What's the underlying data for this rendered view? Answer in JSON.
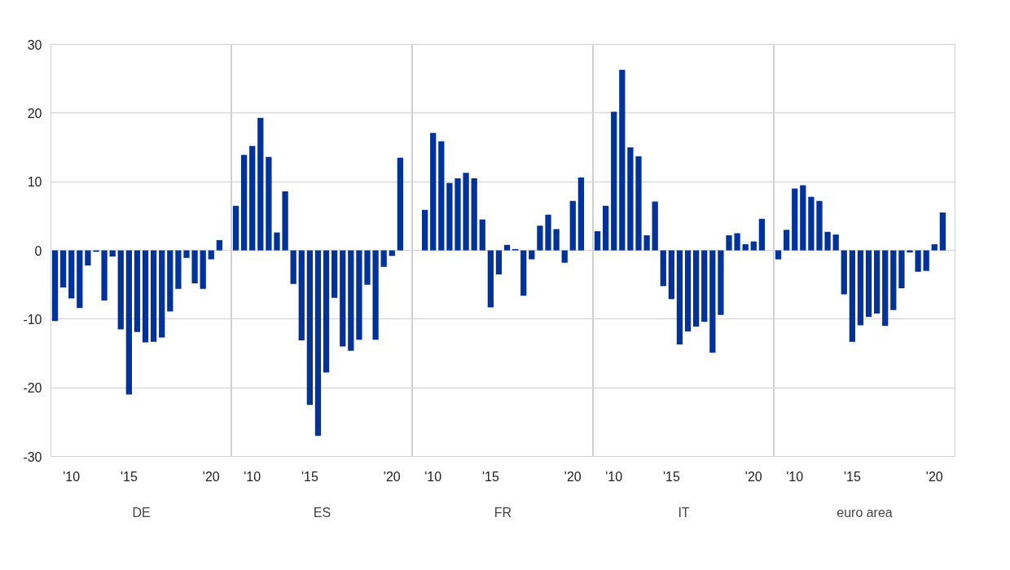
{
  "chart_data": [
    {
      "type": "bar",
      "xlabel": "DE",
      "categories": [
        null,
        null,
        "'10",
        null,
        null,
        null,
        null,
        null,
        null,
        "'15",
        null,
        null,
        null,
        null,
        null,
        null,
        null,
        null,
        null,
        "'20",
        null
      ],
      "values": [
        -10.3,
        -5.4,
        -7.0,
        -8.4,
        -2.2,
        -0.2,
        -7.3,
        -0.9,
        -11.5,
        -21.0,
        -11.9,
        -13.4,
        -13.3,
        -12.7,
        -8.9,
        -5.6,
        -1.1,
        -4.8,
        -5.6,
        -1.3,
        1.5
      ],
      "color": "#003299",
      "ylim": [
        -30,
        30
      ],
      "yticks": [
        -30,
        -20,
        -10,
        0,
        10,
        20,
        30
      ],
      "grid": "y"
    },
    {
      "type": "bar",
      "xlabel": "ES",
      "categories": [
        null,
        null,
        "'10",
        null,
        null,
        null,
        null,
        null,
        null,
        "'15",
        null,
        null,
        null,
        null,
        null,
        null,
        null,
        null,
        null,
        "'20",
        null
      ],
      "values": [
        6.5,
        13.9,
        15.2,
        19.3,
        13.6,
        2.6,
        8.6,
        -4.9,
        -13.1,
        -22.5,
        -27.0,
        -17.8,
        -6.9,
        -14.0,
        -14.6,
        -13.0,
        -5.0,
        -13.0,
        -2.4,
        -0.8,
        13.5
      ],
      "color": "#003299",
      "ylim": [
        -30,
        30
      ],
      "yticks": [
        -30,
        -20,
        -10,
        0,
        10,
        20,
        30
      ],
      "grid": "y",
      "tick_labels": "x"
    },
    {
      "type": "bar",
      "xlabel": "FR",
      "categories": [
        null,
        null,
        "'10",
        null,
        null,
        null,
        null,
        null,
        null,
        "'15",
        null,
        null,
        null,
        null,
        null,
        null,
        null,
        null,
        null,
        "'20",
        null
      ],
      "values": [
        0,
        5.9,
        17.1,
        15.9,
        9.8,
        10.5,
        11.3,
        10.5,
        4.5,
        -8.3,
        -3.5,
        0.8,
        0.2,
        -6.6,
        -1.3,
        3.6,
        5.2,
        3.1,
        -1.8,
        7.2,
        10.6
      ],
      "color": "#003299",
      "ylim": [
        -30,
        30
      ],
      "yticks": [
        -30,
        -20,
        -10,
        0,
        10,
        20,
        30
      ],
      "grid": "y",
      "tick_labels": "x"
    },
    {
      "type": "bar",
      "xlabel": "IT",
      "categories": [
        null,
        null,
        "'10",
        null,
        null,
        null,
        null,
        null,
        null,
        "'15",
        null,
        null,
        null,
        null,
        null,
        null,
        null,
        null,
        null,
        "'20",
        null
      ],
      "values": [
        2.8,
        6.5,
        20.2,
        26.3,
        15.0,
        13.7,
        2.2,
        7.1,
        -5.2,
        -7.1,
        -13.7,
        -11.8,
        -11.1,
        -10.4,
        -14.9,
        -9.4,
        2.2,
        2.5,
        0.9,
        1.3,
        4.6
      ],
      "color": "#003299",
      "ylim": [
        -30,
        30
      ],
      "yticks": [
        -30,
        -20,
        -10,
        0,
        10,
        20,
        30
      ],
      "grid": "y",
      "tick_labels": "x"
    },
    {
      "type": "bar",
      "xlabel": "euro area",
      "categories": [
        null,
        null,
        "'10",
        null,
        null,
        null,
        null,
        null,
        null,
        "'15",
        null,
        null,
        null,
        null,
        null,
        null,
        null,
        null,
        null,
        "'20",
        null
      ],
      "values": [
        -1.3,
        3.0,
        9.0,
        9.5,
        7.8,
        7.2,
        2.7,
        2.3,
        -6.4,
        -13.3,
        -10.9,
        -9.7,
        -9.2,
        -11.0,
        -8.7,
        -5.5,
        -0.3,
        -3.1,
        -3.0,
        0.9,
        5.5
      ],
      "color": "#003299",
      "ylim": [
        -30,
        30
      ],
      "yticks": [
        -30,
        -20,
        -10,
        0,
        10,
        20,
        30
      ],
      "grid": "y",
      "tick_labels": "x"
    }
  ]
}
